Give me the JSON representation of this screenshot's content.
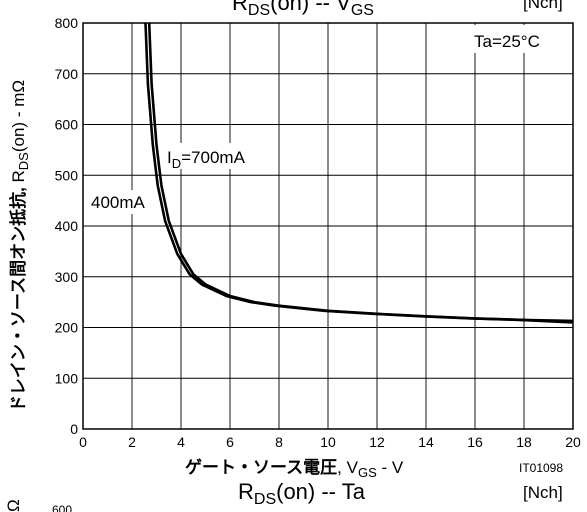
{
  "chart_data": [
    {
      "type": "line",
      "title": "RDS(on) -- VGS",
      "title_parts": {
        "main": "R",
        "sub": "DS",
        "rest": "(on)  --  V",
        "sub2": "GS"
      },
      "channel": "[Nch]",
      "condition": "Ta=25°C",
      "ylabel": "ドレイン・ソース間オン抵抗, RDS(on) - mΩ",
      "ylabel_parts": {
        "jp": "ドレイン・ソース間オン抵抗, ",
        "r": "R",
        "sub": "DS",
        "rest": "(on) - mΩ"
      },
      "xlabel": "ゲート・ソース電圧, VGS - V",
      "xlabel_parts": {
        "jp": "ゲート・ソース電圧",
        "comma": ", V",
        "sub": "GS",
        "rest": " - V"
      },
      "figure_id": "IT01098",
      "xlim": [
        0,
        20
      ],
      "ylim": [
        0,
        800
      ],
      "x_ticks": [
        "0",
        "2",
        "4",
        "6",
        "8",
        "10",
        "12",
        "14",
        "16",
        "18",
        "20"
      ],
      "y_ticks": [
        "0",
        "100",
        "200",
        "300",
        "400",
        "500",
        "600",
        "700",
        "800"
      ],
      "grid": true,
      "series": [
        {
          "name": "ID=700mA",
          "label_parts": {
            "i": "I",
            "sub": "D",
            "rest": "=700mA"
          },
          "x": [
            2.7,
            2.8,
            3.0,
            3.2,
            3.5,
            4.0,
            4.5,
            5.0,
            6.0,
            7.0,
            8.0,
            10.0,
            12.0,
            14.0,
            16.0,
            18.0,
            20.0
          ],
          "y": [
            800,
            680,
            560,
            480,
            410,
            345,
            305,
            285,
            262,
            250,
            243,
            233,
            227,
            222,
            218,
            215,
            213
          ]
        },
        {
          "name": "400mA",
          "x": [
            2.55,
            2.65,
            2.85,
            3.05,
            3.35,
            3.85,
            4.35,
            4.85,
            5.85,
            6.85,
            7.85,
            9.85,
            11.85,
            13.85,
            15.85,
            17.85,
            20.0
          ],
          "y": [
            800,
            680,
            560,
            480,
            410,
            345,
            305,
            285,
            262,
            250,
            243,
            233,
            227,
            222,
            218,
            215,
            210
          ]
        }
      ]
    },
    {
      "type": "line",
      "title": "RDS(on) -- Ta",
      "title_parts": {
        "main": "R",
        "sub": "DS",
        "rest": "(on)  --  Ta"
      },
      "channel": "[Nch]",
      "y_ticks": [
        "600"
      ]
    }
  ]
}
